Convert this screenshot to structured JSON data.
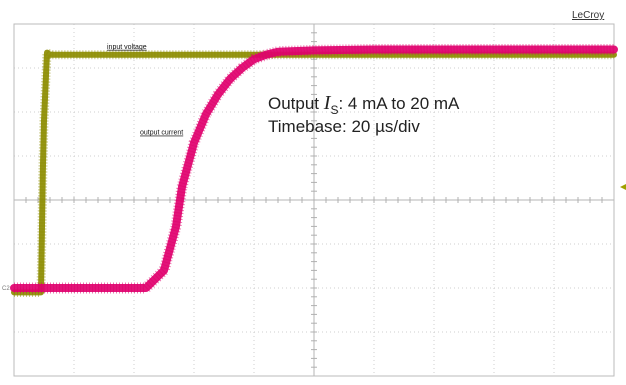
{
  "chart_data": {
    "type": "line",
    "title": "",
    "brand": "LeCroy",
    "xlabel": "",
    "ylabel": "",
    "x_divisions": 10,
    "y_divisions": 8,
    "annotation": {
      "line1_prefix": "Output ",
      "line1_symbol": "I",
      "line1_subscript": "S",
      "line1_suffix": ": 4 mA to 20 mA",
      "line2": "Timebase: 20 µs/div"
    },
    "channel_marker": "C2",
    "series": [
      {
        "name": "input voltage",
        "color": "#8c8c00",
        "unit": "div",
        "x": [
          0,
          0.45,
          0.48,
          0.5,
          0.55,
          0.6,
          10
        ],
        "y": [
          -2.1,
          -2.1,
          0.6,
          1.8,
          3.35,
          3.3,
          3.3
        ],
        "label_at": [
          1.55,
          3.3
        ]
      },
      {
        "name": "output current",
        "color": "#e0006e",
        "unit": "div",
        "x": [
          0,
          2.2,
          2.5,
          2.6,
          2.7,
          2.8,
          2.9,
          3.0,
          3.2,
          3.4,
          3.6,
          3.8,
          4.0,
          4.2,
          4.4,
          5.0,
          6.0,
          10
        ],
        "y": [
          -2.0,
          -2.0,
          -1.6,
          -1.1,
          -0.6,
          0.3,
          0.8,
          1.3,
          1.95,
          2.4,
          2.75,
          3.0,
          3.2,
          3.3,
          3.37,
          3.4,
          3.42,
          3.42
        ],
        "label_at": [
          2.1,
          1.35
        ]
      }
    ]
  }
}
